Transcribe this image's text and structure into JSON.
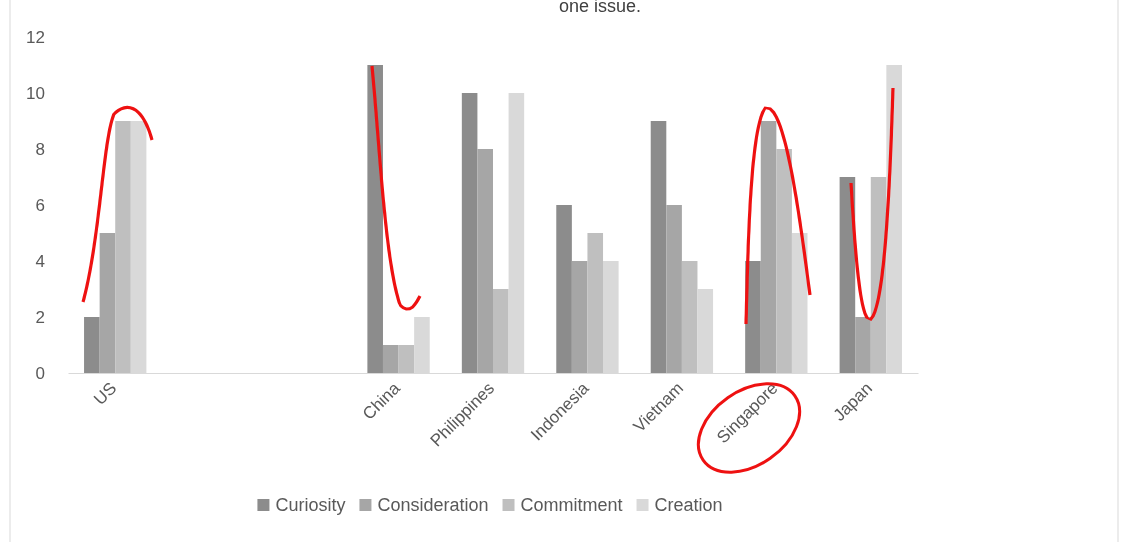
{
  "chart_data": {
    "type": "bar",
    "title": "one issue.",
    "categories": [
      "US",
      null,
      null,
      "China",
      "Philippines",
      "Indonesia",
      "Vietnam",
      "Singapore",
      "Japan"
    ],
    "series": [
      {
        "name": "Curiosity",
        "color": "#8c8c8c",
        "values": [
          2,
          null,
          null,
          11,
          10,
          6,
          9,
          4,
          7
        ]
      },
      {
        "name": "Consideration",
        "color": "#a6a6a6",
        "values": [
          5,
          null,
          null,
          1,
          8,
          4,
          6,
          9,
          2
        ]
      },
      {
        "name": "Commitment",
        "color": "#bfbfbf",
        "values": [
          9,
          null,
          null,
          1,
          3,
          5,
          4,
          8,
          7
        ]
      },
      {
        "name": "Creation",
        "color": "#d9d9d9",
        "values": [
          9,
          null,
          null,
          2,
          10,
          4,
          3,
          5,
          11
        ]
      }
    ],
    "ylim": [
      0,
      12
    ],
    "yticks": [
      0,
      2,
      4,
      6,
      8,
      10,
      12
    ],
    "grid": false,
    "legend": "bottom"
  }
}
